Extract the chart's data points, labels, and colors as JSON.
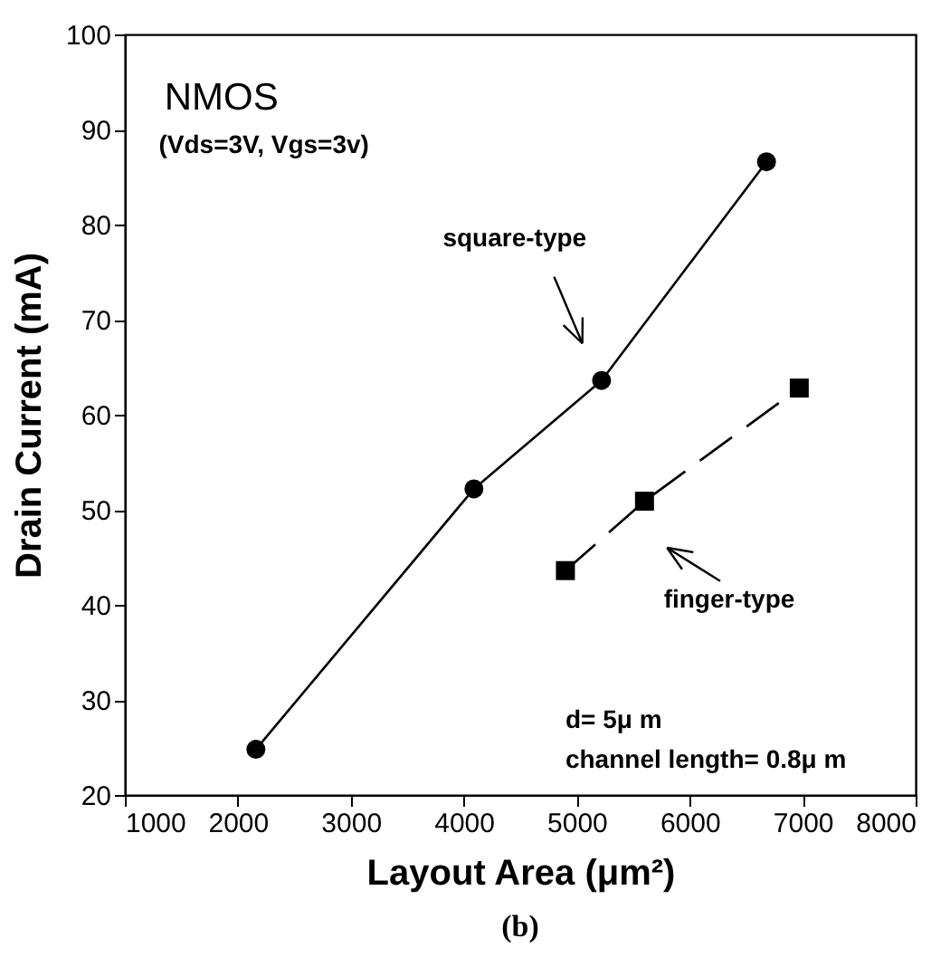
{
  "chart_data": {
    "type": "line",
    "xlabel": "Layout Area (μm²)",
    "ylabel": "Drain Current (mA)",
    "xlim": [
      1000,
      8000
    ],
    "xticks": [
      1000,
      2000,
      3000,
      4000,
      5000,
      6000,
      7000,
      8000
    ],
    "ylim": [
      20,
      100
    ],
    "yticks": [
      20,
      30,
      40,
      50,
      60,
      70,
      80,
      90,
      100
    ],
    "grid": false,
    "series": [
      {
        "color": "#000000",
        "marker": "circle",
        "line_style": "solid",
        "x": [
          2160,
          4090,
          5220,
          6680
        ],
        "values": [
          24.8,
          52.2,
          63.6,
          86.6
        ]
      },
      {
        "color": "#000000",
        "marker": "square",
        "line_style": "dashed",
        "x": [
          4900,
          5600,
          6970
        ],
        "values": [
          43.6,
          50.9,
          62.8
        ]
      }
    ],
    "annotations": [
      "NMOS",
      "(Vds=3V, Vgs=3v)",
      "d= 5μ m",
      "channel length= 0.8μ m",
      "(b)",
      "square-type",
      "finger-type"
    ]
  }
}
